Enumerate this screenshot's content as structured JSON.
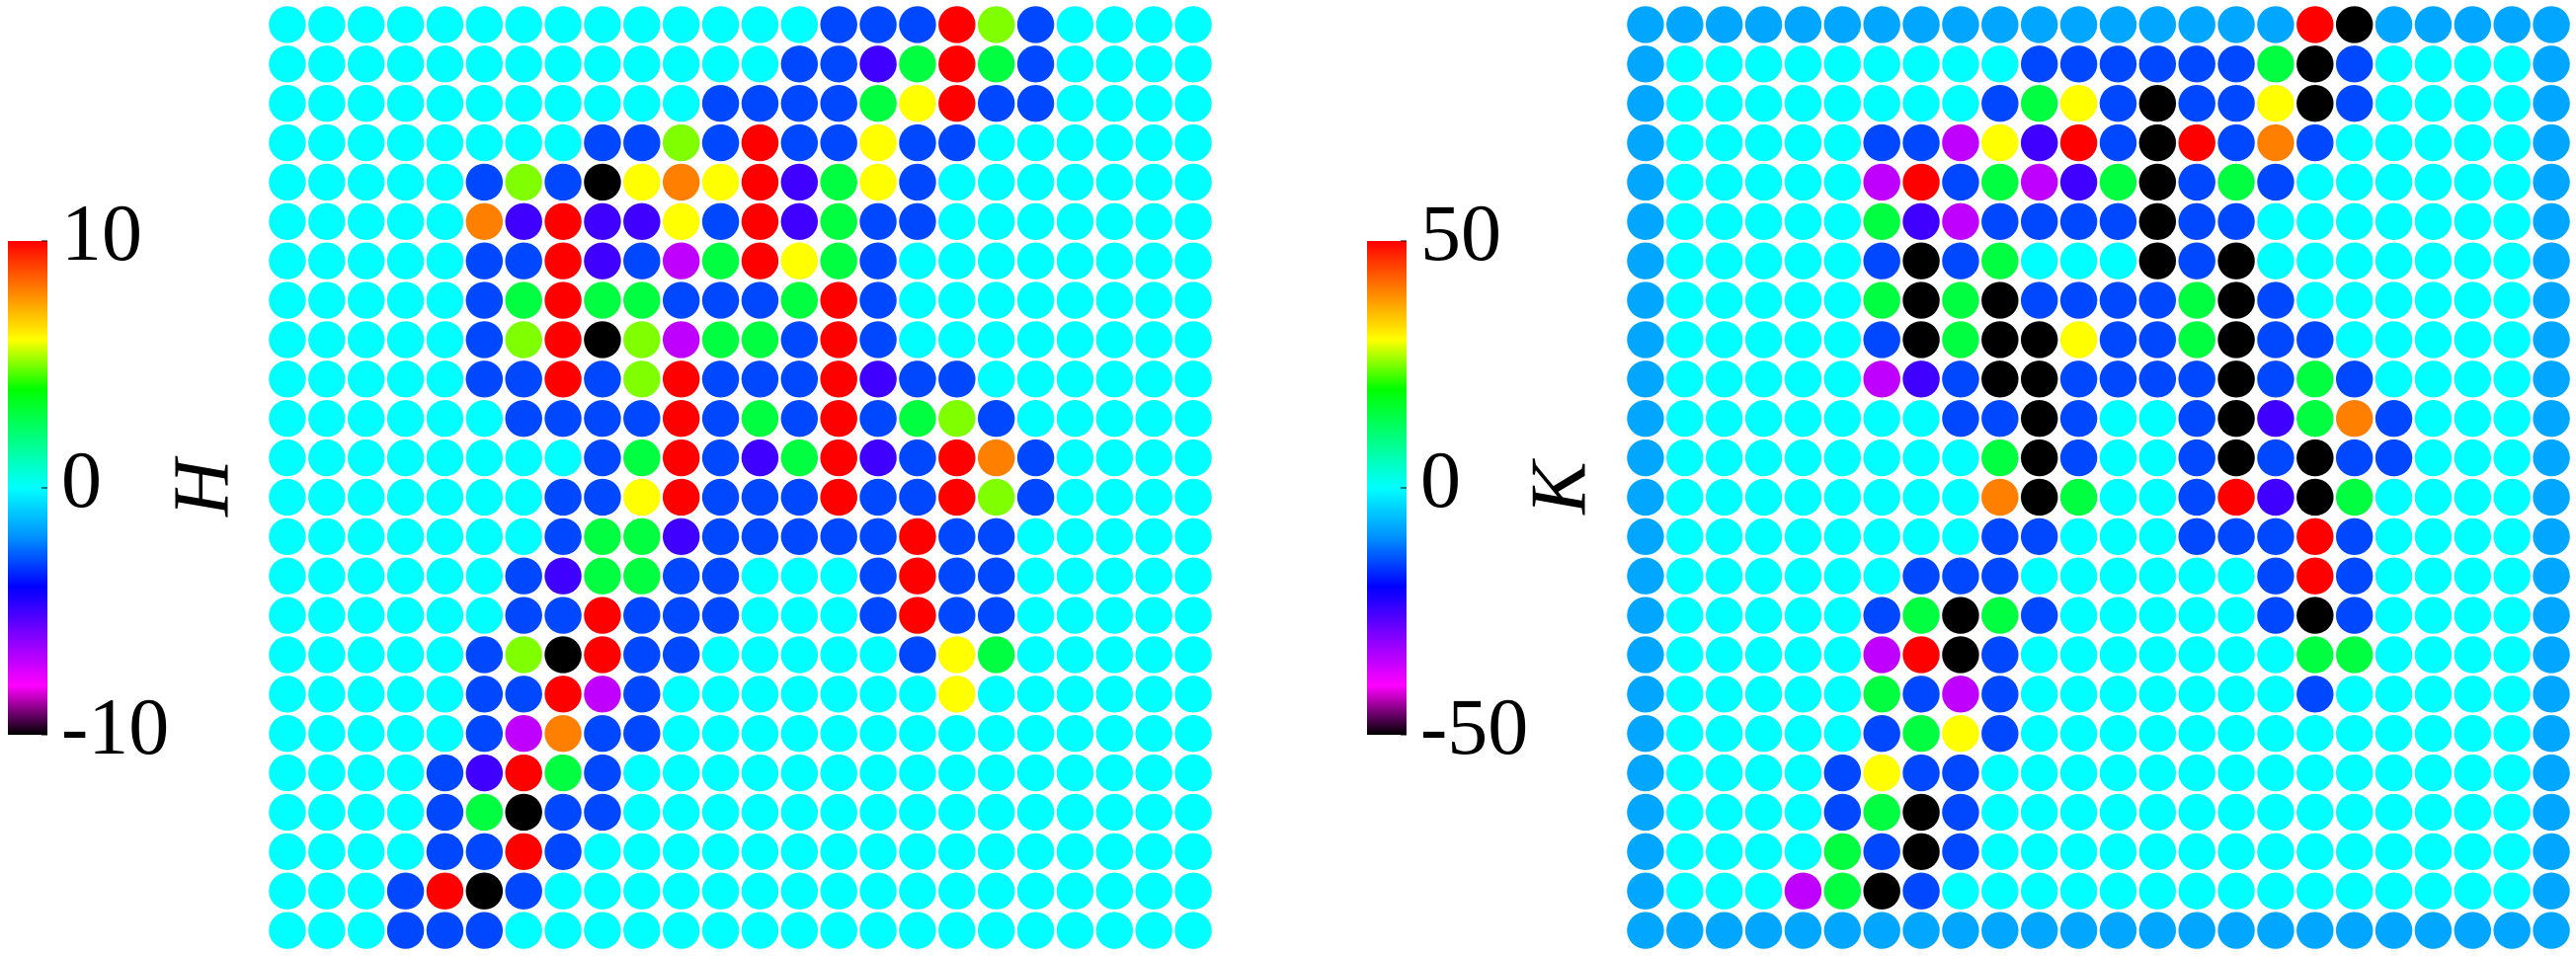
{
  "chart_data": [
    {
      "type": "heatmap",
      "zlabel": "H",
      "zlim": [
        -10,
        10
      ],
      "zticks": [
        -10,
        0,
        10
      ],
      "colormap": [
        "#000000",
        "#ff00ff",
        "#8000ff",
        "#0000ff",
        "#0090ff",
        "#00ffff",
        "#00ff80",
        "#00ff00",
        "#ffff00",
        "#ff8000",
        "#ff0000"
      ],
      "values": [
        [
          0,
          0,
          0,
          0,
          0,
          0,
          0,
          0,
          0,
          0,
          0,
          0,
          0,
          0,
          -3,
          -3,
          -3,
          10,
          5,
          -3,
          0,
          0,
          0,
          0
        ],
        [
          0,
          0,
          0,
          0,
          0,
          0,
          0,
          0,
          0,
          0,
          0,
          0,
          0,
          -3,
          -3,
          -5,
          3,
          10,
          3,
          -3,
          0,
          0,
          0,
          0
        ],
        [
          0,
          0,
          0,
          0,
          0,
          0,
          0,
          0,
          0,
          0,
          0,
          -3,
          -3,
          -3,
          -3,
          3,
          6,
          10,
          -3,
          -3,
          0,
          0,
          0,
          0
        ],
        [
          0,
          0,
          0,
          0,
          0,
          0,
          0,
          0,
          -3,
          -3,
          5,
          -3,
          10,
          -3,
          -3,
          6,
          -3,
          -3,
          0,
          0,
          0,
          0,
          0,
          0
        ],
        [
          0,
          0,
          0,
          0,
          0,
          -3,
          5,
          -3,
          -10,
          6,
          8,
          6,
          10,
          -5,
          3,
          6,
          -3,
          0,
          0,
          0,
          0,
          0,
          0,
          0
        ],
        [
          0,
          0,
          0,
          0,
          0,
          8,
          -5,
          10,
          -5,
          -5,
          6,
          -3,
          10,
          -5,
          3,
          -3,
          -3,
          0,
          0,
          0,
          0,
          0,
          0,
          0
        ],
        [
          0,
          0,
          0,
          0,
          0,
          -3,
          -3,
          10,
          -5,
          -3,
          -7,
          3,
          10,
          6,
          3,
          -3,
          0,
          0,
          0,
          0,
          0,
          0,
          0,
          0
        ],
        [
          0,
          0,
          0,
          0,
          0,
          -3,
          3,
          10,
          3,
          3,
          -3,
          -3,
          -3,
          3,
          10,
          -3,
          0,
          0,
          0,
          0,
          0,
          0,
          0,
          0
        ],
        [
          0,
          0,
          0,
          0,
          0,
          -3,
          5,
          10,
          -10,
          5,
          -7,
          3,
          3,
          -3,
          10,
          -3,
          0,
          0,
          0,
          0,
          0,
          0,
          0,
          0
        ],
        [
          0,
          0,
          0,
          0,
          0,
          -3,
          -3,
          10,
          -3,
          5,
          10,
          -3,
          -3,
          -3,
          10,
          -5,
          -3,
          -3,
          0,
          0,
          0,
          0,
          0,
          0
        ],
        [
          0,
          0,
          0,
          0,
          0,
          0,
          -3,
          -3,
          -3,
          -3,
          10,
          -3,
          3,
          -3,
          10,
          -3,
          3,
          5,
          -3,
          0,
          0,
          0,
          0,
          0
        ],
        [
          0,
          0,
          0,
          0,
          0,
          0,
          0,
          0,
          -3,
          3,
          10,
          -3,
          -5,
          3,
          10,
          -5,
          -3,
          10,
          8,
          -3,
          0,
          0,
          0,
          0
        ],
        [
          0,
          0,
          0,
          0,
          0,
          0,
          0,
          -3,
          -3,
          6,
          10,
          -3,
          -3,
          -3,
          10,
          -3,
          -3,
          10,
          5,
          -3,
          0,
          0,
          0,
          0
        ],
        [
          0,
          0,
          0,
          0,
          0,
          0,
          0,
          -3,
          3,
          3,
          -5,
          -3,
          -3,
          -3,
          -3,
          -3,
          10,
          -3,
          -3,
          0,
          0,
          0,
          0,
          0
        ],
        [
          0,
          0,
          0,
          0,
          0,
          0,
          -3,
          -5,
          3,
          3,
          -3,
          -3,
          0,
          0,
          0,
          -3,
          10,
          -3,
          -3,
          0,
          0,
          0,
          0,
          0
        ],
        [
          0,
          0,
          0,
          0,
          0,
          0,
          -3,
          -3,
          10,
          -3,
          -3,
          -3,
          0,
          0,
          0,
          -3,
          10,
          -3,
          -3,
          0,
          0,
          0,
          0,
          0
        ],
        [
          0,
          0,
          0,
          0,
          0,
          -3,
          5,
          -10,
          10,
          -3,
          -3,
          0,
          0,
          0,
          0,
          0,
          -3,
          6,
          3,
          0,
          0,
          0,
          0,
          0
        ],
        [
          0,
          0,
          0,
          0,
          0,
          -3,
          -3,
          10,
          -7,
          -3,
          0,
          0,
          0,
          0,
          0,
          0,
          0,
          6,
          0,
          0,
          0,
          0,
          0,
          0
        ],
        [
          0,
          0,
          0,
          0,
          0,
          -3,
          -7,
          8,
          -3,
          -3,
          0,
          0,
          0,
          0,
          0,
          0,
          0,
          0,
          0,
          0,
          0,
          0,
          0,
          0
        ],
        [
          0,
          0,
          0,
          0,
          -3,
          -5,
          10,
          3,
          -3,
          0,
          0,
          0,
          0,
          0,
          0,
          0,
          0,
          0,
          0,
          0,
          0,
          0,
          0,
          0
        ],
        [
          0,
          0,
          0,
          0,
          -3,
          3,
          -10,
          -3,
          -3,
          0,
          0,
          0,
          0,
          0,
          0,
          0,
          0,
          0,
          0,
          0,
          0,
          0,
          0,
          0
        ],
        [
          0,
          0,
          0,
          0,
          -3,
          -3,
          10,
          -3,
          0,
          0,
          0,
          0,
          0,
          0,
          0,
          0,
          0,
          0,
          0,
          0,
          0,
          0,
          0,
          0
        ],
        [
          0,
          0,
          0,
          -3,
          10,
          -10,
          -3,
          0,
          0,
          0,
          0,
          0,
          0,
          0,
          0,
          0,
          0,
          0,
          0,
          0,
          0,
          0,
          0,
          0
        ],
        [
          0,
          0,
          0,
          -3,
          -3,
          -3,
          0,
          0,
          0,
          0,
          0,
          0,
          0,
          0,
          0,
          0,
          0,
          0,
          0,
          0,
          0,
          0,
          0,
          0
        ]
      ]
    },
    {
      "type": "heatmap",
      "zlabel": "K",
      "zlim": [
        -50,
        50
      ],
      "zticks": [
        -50,
        0,
        50
      ],
      "colormap": [
        "#000000",
        "#ff00ff",
        "#8000ff",
        "#0000ff",
        "#0090ff",
        "#00ffff",
        "#00ff80",
        "#00ff00",
        "#ffff00",
        "#ff8000",
        "#ff0000"
      ],
      "values": [
        [
          -8,
          -8,
          -8,
          -8,
          -8,
          -8,
          -8,
          -8,
          -8,
          -8,
          -8,
          -8,
          -8,
          -8,
          -8,
          -8,
          -8,
          50,
          -50,
          -8,
          -8,
          -8,
          -8,
          -8
        ],
        [
          -8,
          0,
          0,
          0,
          0,
          0,
          0,
          0,
          0,
          0,
          -15,
          -15,
          -15,
          -15,
          -15,
          -15,
          15,
          -50,
          -15,
          0,
          0,
          0,
          0,
          -8
        ],
        [
          -8,
          0,
          0,
          0,
          0,
          0,
          0,
          0,
          0,
          -15,
          15,
          30,
          -15,
          -50,
          -15,
          -15,
          30,
          -50,
          -15,
          0,
          0,
          0,
          0,
          -8
        ],
        [
          -8,
          0,
          0,
          0,
          0,
          0,
          -15,
          -15,
          -35,
          30,
          -25,
          50,
          -15,
          -50,
          50,
          -15,
          40,
          -15,
          0,
          0,
          0,
          0,
          0,
          -8
        ],
        [
          -8,
          0,
          0,
          0,
          0,
          0,
          -35,
          50,
          -15,
          15,
          -35,
          -25,
          15,
          -50,
          -15,
          15,
          -15,
          0,
          0,
          0,
          0,
          0,
          0,
          -8
        ],
        [
          -8,
          0,
          0,
          0,
          0,
          0,
          15,
          -25,
          -35,
          -15,
          -15,
          -15,
          -15,
          -50,
          -15,
          -15,
          0,
          0,
          0,
          0,
          0,
          0,
          0,
          -8
        ],
        [
          -8,
          0,
          0,
          0,
          0,
          0,
          -15,
          -50,
          -15,
          15,
          0,
          0,
          0,
          -50,
          -15,
          -50,
          0,
          0,
          0,
          0,
          0,
          0,
          0,
          -8
        ],
        [
          -8,
          0,
          0,
          0,
          0,
          0,
          15,
          -50,
          15,
          -50,
          -15,
          -15,
          -15,
          -15,
          15,
          -50,
          -15,
          0,
          0,
          0,
          0,
          0,
          0,
          -8
        ],
        [
          -8,
          0,
          0,
          0,
          0,
          0,
          -15,
          -50,
          15,
          -50,
          -50,
          30,
          -15,
          -15,
          15,
          -50,
          -15,
          -15,
          0,
          0,
          0,
          0,
          0,
          -8
        ],
        [
          -8,
          0,
          0,
          0,
          0,
          0,
          -35,
          -25,
          -15,
          -50,
          -50,
          -15,
          -15,
          -15,
          -15,
          -50,
          -15,
          15,
          -15,
          0,
          0,
          0,
          0,
          -8
        ],
        [
          -8,
          0,
          0,
          0,
          0,
          0,
          0,
          0,
          -15,
          -15,
          -50,
          -15,
          0,
          0,
          -15,
          -50,
          -25,
          15,
          40,
          -15,
          0,
          0,
          0,
          -8
        ],
        [
          -8,
          0,
          0,
          0,
          0,
          0,
          0,
          0,
          0,
          15,
          -50,
          -15,
          0,
          0,
          -15,
          -50,
          -15,
          -50,
          -15,
          -15,
          0,
          0,
          0,
          -8
        ],
        [
          -8,
          0,
          0,
          0,
          0,
          0,
          0,
          0,
          0,
          40,
          -50,
          15,
          0,
          0,
          -15,
          50,
          -25,
          -50,
          15,
          0,
          0,
          0,
          0,
          -8
        ],
        [
          -8,
          0,
          0,
          0,
          0,
          0,
          0,
          0,
          0,
          -15,
          -15,
          0,
          0,
          0,
          -15,
          -15,
          -15,
          50,
          -15,
          0,
          0,
          0,
          0,
          -8
        ],
        [
          -8,
          0,
          0,
          0,
          0,
          0,
          0,
          -15,
          -15,
          -15,
          0,
          0,
          0,
          0,
          0,
          0,
          -15,
          50,
          -15,
          0,
          0,
          0,
          0,
          -8
        ],
        [
          -8,
          0,
          0,
          0,
          0,
          0,
          -15,
          15,
          -50,
          15,
          -15,
          0,
          0,
          0,
          0,
          0,
          -15,
          -50,
          -15,
          0,
          0,
          0,
          0,
          -8
        ],
        [
          -8,
          0,
          0,
          0,
          0,
          0,
          -35,
          50,
          -50,
          -15,
          0,
          0,
          0,
          0,
          0,
          0,
          0,
          15,
          15,
          0,
          0,
          0,
          0,
          -8
        ],
        [
          -8,
          0,
          0,
          0,
          0,
          0,
          15,
          -15,
          -35,
          -15,
          0,
          0,
          0,
          0,
          0,
          0,
          0,
          -15,
          0,
          0,
          0,
          0,
          0,
          -8
        ],
        [
          -8,
          0,
          0,
          0,
          0,
          0,
          -15,
          15,
          30,
          -15,
          0,
          0,
          0,
          0,
          0,
          0,
          0,
          0,
          0,
          0,
          0,
          0,
          0,
          -8
        ],
        [
          -8,
          0,
          0,
          0,
          0,
          -15,
          30,
          -15,
          -15,
          0,
          0,
          0,
          0,
          0,
          0,
          0,
          0,
          0,
          0,
          0,
          0,
          0,
          0,
          -8
        ],
        [
          -8,
          0,
          0,
          0,
          0,
          -15,
          15,
          -50,
          -15,
          0,
          0,
          0,
          0,
          0,
          0,
          0,
          0,
          0,
          0,
          0,
          0,
          0,
          0,
          -8
        ],
        [
          -8,
          0,
          0,
          0,
          0,
          15,
          -15,
          -50,
          -15,
          0,
          0,
          0,
          0,
          0,
          0,
          0,
          0,
          0,
          0,
          0,
          0,
          0,
          0,
          -8
        ],
        [
          -8,
          0,
          0,
          0,
          -35,
          15,
          -50,
          -15,
          0,
          0,
          0,
          0,
          0,
          0,
          0,
          0,
          0,
          0,
          0,
          0,
          0,
          0,
          0,
          -8
        ],
        [
          -8,
          -8,
          -8,
          -8,
          -8,
          -8,
          -8,
          -8,
          -8,
          -8,
          -8,
          -8,
          -8,
          -8,
          -8,
          -8,
          -8,
          -8,
          -8,
          -8,
          -8,
          -8,
          -8,
          -8
        ]
      ]
    }
  ]
}
